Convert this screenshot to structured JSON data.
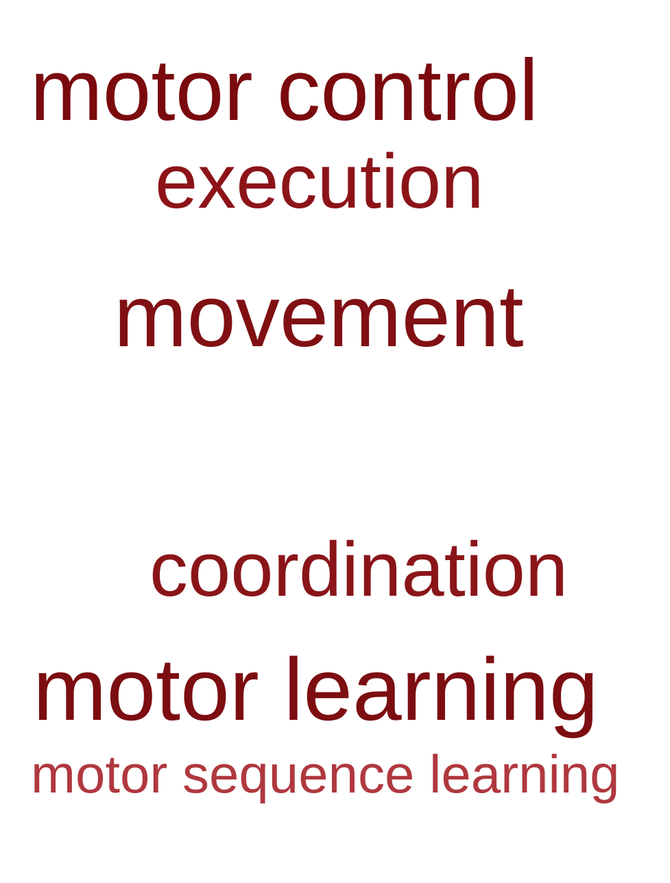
{
  "word_cloud": {
    "words": [
      {
        "text": "motor control",
        "color": "#7a0a0e"
      },
      {
        "text": "execution",
        "color": "#8c1419"
      },
      {
        "text": "movement",
        "color": "#801013"
      },
      {
        "text": "coordination",
        "color": "#8a1519"
      },
      {
        "text": "motor learning",
        "color": "#7c0d11"
      },
      {
        "text": "motor sequence learning",
        "color": "#b0383f"
      }
    ]
  }
}
